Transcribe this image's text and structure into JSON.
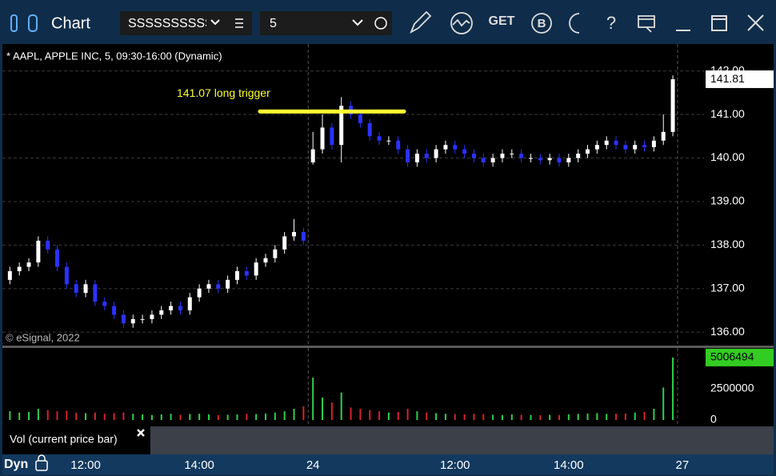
{
  "toolbar": {
    "title": "Chart",
    "symbol": "SSSSSSSSSSS",
    "interval": "5",
    "get": "GET",
    "b": "B",
    "help": "?"
  },
  "chart_data": {
    "type": "candlestick",
    "title": "* AAPL, APPLE INC, 5, 09:30-16:00 (Dynamic)",
    "credit": "© eSignal, 2022",
    "annotation": {
      "text": "141.07 long trigger",
      "value": 141.07,
      "color": "#ffff33"
    },
    "up_color": "#ffffff",
    "down_color": "#2a32ff",
    "open": [
      137.2,
      137.4,
      137.5,
      137.6,
      138.1,
      137.9,
      137.5,
      137.1,
      136.9,
      137.1,
      136.7,
      136.6,
      136.4,
      136.2,
      136.3,
      136.3,
      136.4,
      136.5,
      136.6,
      136.5,
      136.8,
      137.0,
      137.1,
      137.0,
      137.2,
      137.4,
      137.3,
      137.6,
      137.7,
      137.9,
      138.2,
      138.3,
      139.9,
      140.2,
      140.7,
      140.3,
      141.2,
      141.0,
      140.8,
      140.5,
      140.4,
      140.4,
      140.2,
      139.9,
      140.1,
      140.0,
      140.2,
      140.3,
      140.2,
      140.1,
      140.0,
      139.9,
      140.0,
      140.1,
      140.1,
      140.0,
      140.0,
      139.95,
      140.0,
      139.9,
      140.0,
      140.1,
      140.2,
      140.3,
      140.4,
      140.3,
      140.2,
      140.3,
      140.25,
      140.4,
      140.6
    ],
    "high": [
      137.5,
      137.6,
      137.7,
      138.2,
      138.2,
      138.0,
      137.6,
      137.2,
      137.2,
      137.2,
      136.8,
      136.7,
      136.5,
      136.4,
      136.4,
      136.5,
      136.6,
      136.7,
      136.7,
      136.9,
      137.1,
      137.2,
      137.2,
      137.3,
      137.5,
      137.5,
      137.7,
      137.8,
      138.0,
      138.3,
      138.6,
      138.4,
      140.6,
      141.0,
      140.8,
      141.4,
      141.3,
      141.1,
      140.9,
      140.6,
      140.5,
      140.5,
      140.3,
      140.2,
      140.2,
      140.3,
      140.4,
      140.4,
      140.3,
      140.2,
      140.1,
      140.1,
      140.2,
      140.2,
      140.2,
      140.1,
      140.1,
      140.1,
      140.1,
      140.1,
      140.2,
      140.3,
      140.4,
      140.5,
      140.5,
      140.4,
      140.4,
      140.4,
      140.5,
      141.0,
      141.9
    ],
    "low": [
      137.1,
      137.3,
      137.4,
      137.5,
      137.8,
      137.4,
      137.0,
      136.8,
      136.8,
      136.6,
      136.5,
      136.3,
      136.1,
      136.1,
      136.2,
      136.2,
      136.3,
      136.4,
      136.4,
      136.4,
      136.7,
      136.9,
      136.9,
      136.9,
      137.1,
      137.2,
      137.2,
      137.5,
      137.6,
      137.8,
      138.1,
      138.0,
      139.85,
      140.1,
      140.2,
      139.9,
      140.9,
      140.7,
      140.4,
      140.3,
      140.3,
      140.1,
      139.8,
      139.8,
      139.9,
      139.9,
      140.1,
      140.1,
      140.0,
      139.9,
      139.8,
      139.8,
      139.9,
      140.0,
      139.9,
      139.9,
      139.85,
      139.85,
      139.8,
      139.8,
      139.9,
      140.0,
      140.1,
      140.2,
      140.2,
      140.1,
      140.1,
      140.15,
      140.15,
      140.3,
      140.5
    ],
    "close": [
      137.4,
      137.5,
      137.6,
      138.1,
      137.9,
      137.5,
      137.1,
      136.9,
      137.1,
      136.7,
      136.6,
      136.4,
      136.2,
      136.3,
      136.3,
      136.4,
      136.5,
      136.6,
      136.5,
      136.8,
      137.0,
      137.1,
      137.0,
      137.2,
      137.4,
      137.3,
      137.6,
      137.7,
      137.9,
      138.2,
      138.3,
      138.1,
      140.2,
      140.7,
      140.3,
      141.2,
      141.0,
      140.8,
      140.5,
      140.4,
      140.4,
      140.2,
      139.9,
      140.1,
      140.0,
      140.2,
      140.3,
      140.2,
      140.1,
      140.0,
      139.9,
      140.0,
      140.1,
      140.1,
      140.0,
      140.0,
      139.95,
      140.0,
      139.9,
      140.0,
      140.1,
      140.2,
      140.3,
      140.4,
      140.3,
      140.2,
      140.3,
      140.25,
      140.4,
      140.6,
      141.81
    ],
    "ylim": [
      135.69,
      142.62
    ],
    "yticks": [
      {
        "value": 136,
        "label": "136.00"
      },
      {
        "value": 137,
        "label": "137.00"
      },
      {
        "value": 138,
        "label": "138.00"
      },
      {
        "value": 139,
        "label": "139.00"
      },
      {
        "value": 140,
        "label": "140.00"
      },
      {
        "value": 141,
        "label": "141.00"
      },
      {
        "value": 142,
        "label": "142.00"
      }
    ],
    "grid": true,
    "xlim": [
      -0.79,
      73.29
    ],
    "xticks": [
      {
        "value": 8,
        "label": "12:00"
      },
      {
        "value": 20,
        "label": "14:00"
      },
      {
        "value": 32,
        "label": "24"
      },
      {
        "value": 47,
        "label": "12:00"
      },
      {
        "value": 59,
        "label": "14:00"
      },
      {
        "value": 71,
        "label": "27"
      }
    ],
    "volume": {
      "name": "Vol (current price bar)",
      "up_color": "#2fd04a",
      "down_color": "#d8222a",
      "label_color": "#33cc22",
      "values": [
        700000,
        600000,
        650000,
        900000,
        800000,
        700000,
        750000,
        600000,
        550000,
        600000,
        500000,
        550000,
        600000,
        500000,
        450000,
        400000,
        450000,
        500000,
        420000,
        480000,
        500000,
        450000,
        400000,
        420000,
        450000,
        500000,
        480000,
        520000,
        600000,
        700000,
        900000,
        1100000,
        3400000,
        1800000,
        1400000,
        2200000,
        1000000,
        900000,
        800000,
        700000,
        600000,
        650000,
        900000,
        700000,
        600000,
        550000,
        500000,
        480000,
        450000,
        500000,
        480000,
        420000,
        400000,
        450000,
        420000,
        400000,
        380000,
        420000,
        400000,
        450000,
        500000,
        520000,
        550000,
        480000,
        500000,
        520000,
        600000,
        650000,
        900000,
        2600000,
        5006494
      ],
      "ylim": [
        0,
        5770000
      ],
      "yticks": [
        0,
        2500000
      ]
    },
    "mode": "Dyn"
  }
}
